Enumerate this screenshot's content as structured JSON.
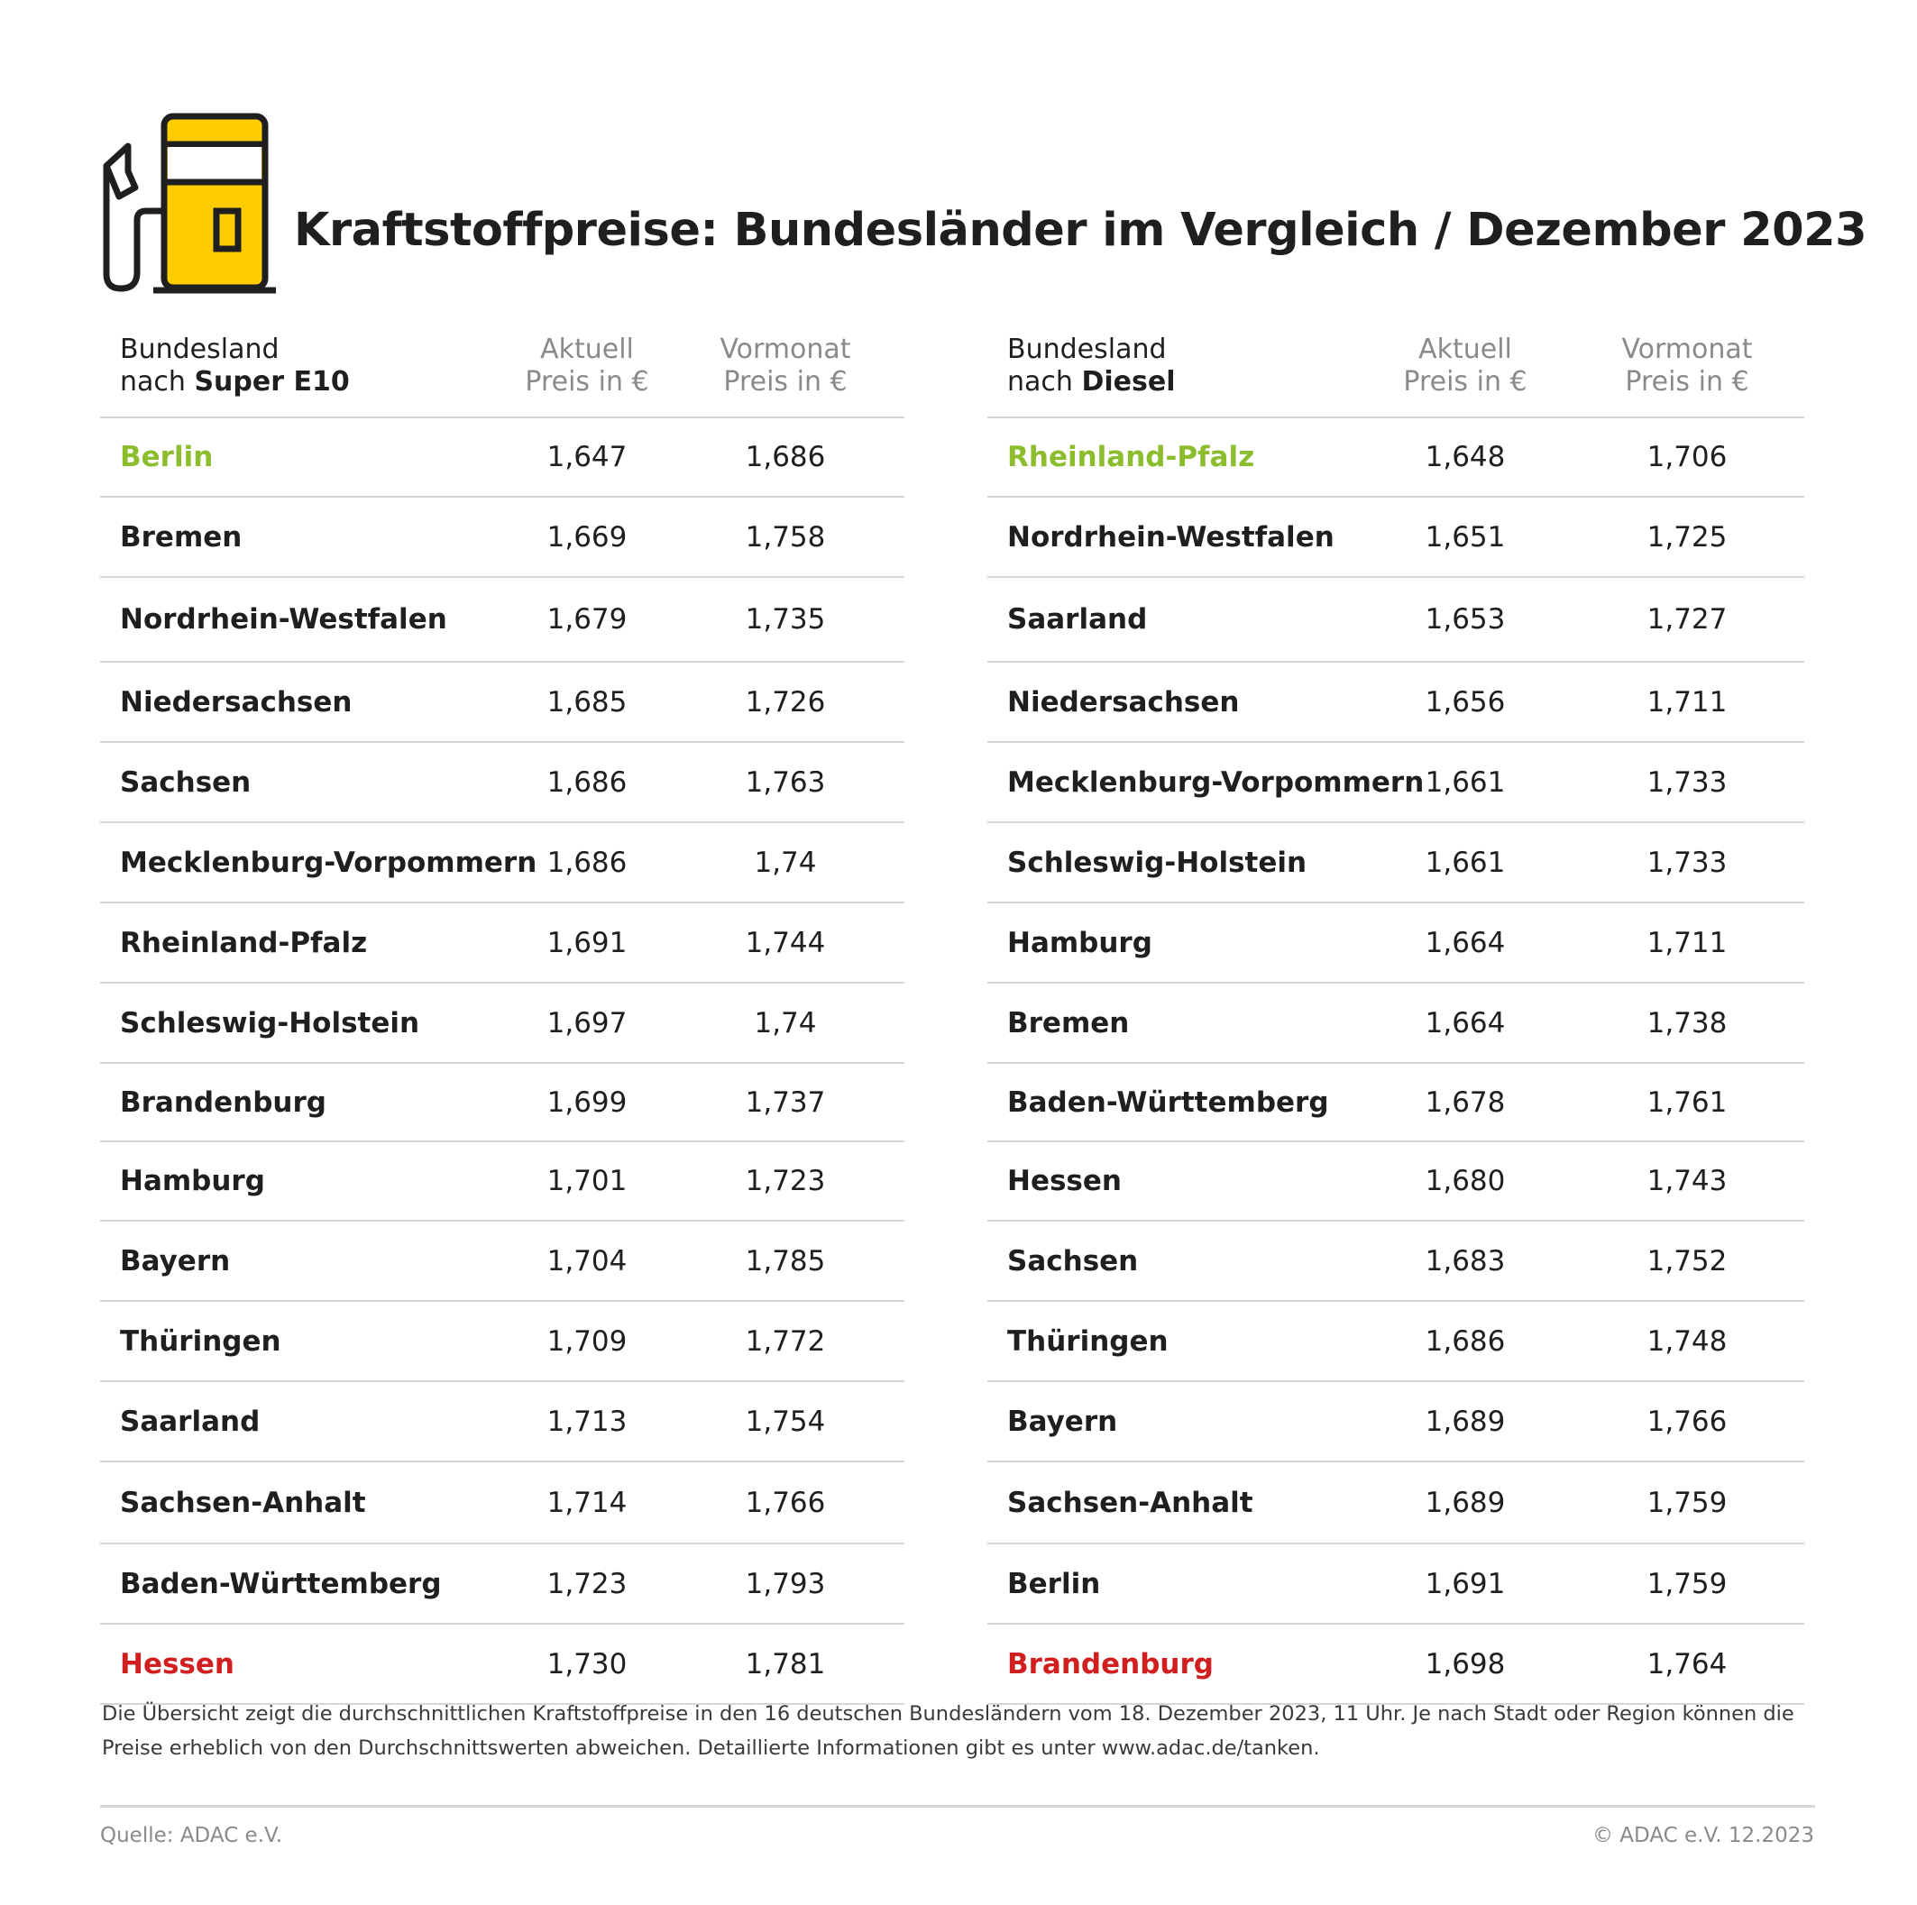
{
  "header": {
    "title": "Kraftstoffpreise: Bundesländer im Vergleich / Dezember 2023",
    "icon": "fuel-pump-icon",
    "accent_color": "#ffcc00"
  },
  "colors": {
    "best": "#8cbd2e",
    "worst": "#d11f1f",
    "rule": "#d6d6d6"
  },
  "tables": [
    {
      "header": {
        "name_line1": "Bundesland",
        "name_prefix": "nach",
        "name_bold": "Super E10",
        "current_line1": "Aktuell",
        "current_line2": "Preis in €",
        "previous_line1": "Vormonat",
        "previous_line2": "Preis in €"
      },
      "rows": [
        {
          "name": "Berlin",
          "current": "1,647",
          "previous": "1,686",
          "highlight": "best"
        },
        {
          "name": "Bremen",
          "current": "1,669",
          "previous": "1,758"
        },
        {
          "name": "Nordrhein-Westfalen",
          "current": "1,679",
          "previous": "1,735"
        },
        {
          "name": "Niedersachsen",
          "current": "1,685",
          "previous": "1,726"
        },
        {
          "name": "Sachsen",
          "current": "1,686",
          "previous": "1,763"
        },
        {
          "name": "Mecklenburg-Vorpommern",
          "current": "1,686",
          "previous": "1,74"
        },
        {
          "name": "Rheinland-Pfalz",
          "current": "1,691",
          "previous": "1,744"
        },
        {
          "name": "Schleswig-Holstein",
          "current": "1,697",
          "previous": "1,74"
        },
        {
          "name": "Brandenburg",
          "current": "1,699",
          "previous": "1,737"
        },
        {
          "name": "Hamburg",
          "current": "1,701",
          "previous": "1,723"
        },
        {
          "name": "Bayern",
          "current": "1,704",
          "previous": "1,785"
        },
        {
          "name": "Thüringen",
          "current": "1,709",
          "previous": "1,772"
        },
        {
          "name": "Saarland",
          "current": "1,713",
          "previous": "1,754"
        },
        {
          "name": "Sachsen-Anhalt",
          "current": "1,714",
          "previous": "1,766"
        },
        {
          "name": "Baden-Württemberg",
          "current": "1,723",
          "previous": "1,793"
        },
        {
          "name": "Hessen",
          "current": "1,730",
          "previous": "1,781",
          "highlight": "worst"
        }
      ]
    },
    {
      "header": {
        "name_line1": "Bundesland",
        "name_prefix": "nach",
        "name_bold": "Diesel",
        "current_line1": "Aktuell",
        "current_line2": "Preis in €",
        "previous_line1": "Vormonat",
        "previous_line2": "Preis in €"
      },
      "rows": [
        {
          "name": "Rheinland-Pfalz",
          "current": "1,648",
          "previous": "1,706",
          "highlight": "best"
        },
        {
          "name": "Nordrhein-Westfalen",
          "current": "1,651",
          "previous": "1,725"
        },
        {
          "name": "Saarland",
          "current": "1,653",
          "previous": "1,727"
        },
        {
          "name": "Niedersachsen",
          "current": "1,656",
          "previous": "1,711"
        },
        {
          "name": "Mecklenburg-Vorpommern",
          "current": "1,661",
          "previous": "1,733"
        },
        {
          "name": "Schleswig-Holstein",
          "current": "1,661",
          "previous": "1,733"
        },
        {
          "name": "Hamburg",
          "current": "1,664",
          "previous": "1,711"
        },
        {
          "name": "Bremen",
          "current": "1,664",
          "previous": "1,738"
        },
        {
          "name": "Baden-Württemberg",
          "current": "1,678",
          "previous": "1,761"
        },
        {
          "name": "Hessen",
          "current": "1,680",
          "previous": "1,743"
        },
        {
          "name": "Sachsen",
          "current": "1,683",
          "previous": "1,752"
        },
        {
          "name": "Thüringen",
          "current": "1,686",
          "previous": "1,748"
        },
        {
          "name": "Bayern",
          "current": "1,689",
          "previous": "1,766"
        },
        {
          "name": "Sachsen-Anhalt",
          "current": "1,689",
          "previous": "1,759"
        },
        {
          "name": "Berlin",
          "current": "1,691",
          "previous": "1,759"
        },
        {
          "name": "Brandenburg",
          "current": "1,698",
          "previous": "1,764",
          "highlight": "worst"
        }
      ]
    }
  ],
  "footer": {
    "note_line1": "Die Übersicht zeigt die durchschnittlichen Kraftstoffpreise in den 16 deutschen Bundesländern vom 18. Dezember 2023, 11 Uhr. Je nach Stadt oder Region können die",
    "note_line2": "Preise erheblich von den Durchschnittswerten abweichen. Detaillierte Informationen gibt es unter www.adac.de/tanken.",
    "source": "Quelle: ADAC e.V.",
    "copyright": "© ADAC e.V. 12.2023"
  }
}
